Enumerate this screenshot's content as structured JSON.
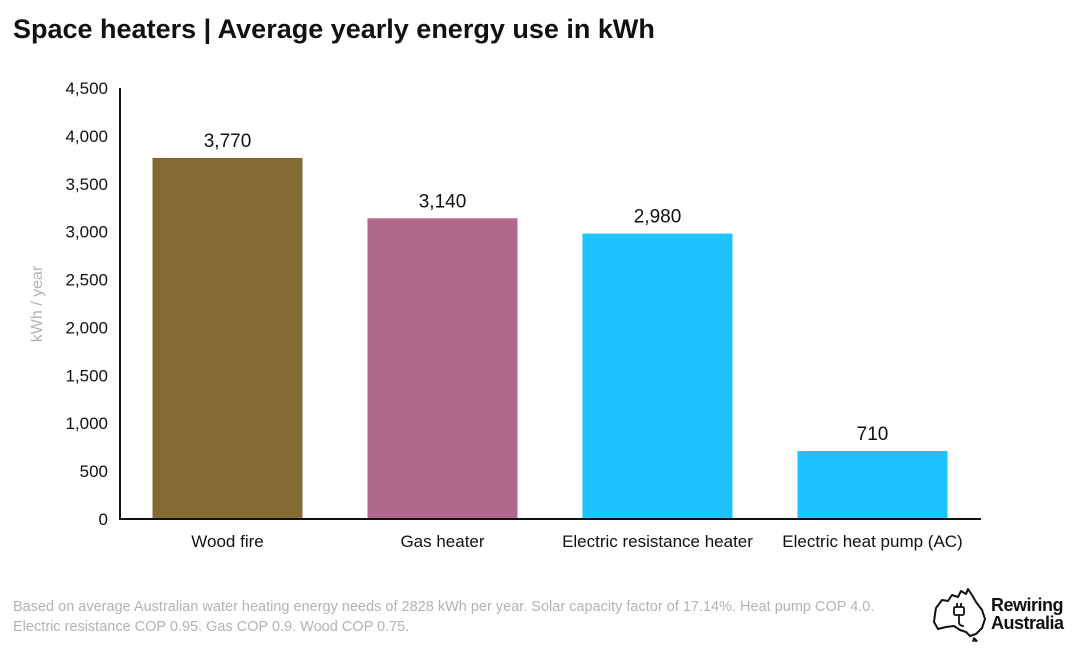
{
  "title": "Space heaters | Average yearly energy use in kWh",
  "chart_data": {
    "type": "bar",
    "title": "Space heaters | Average yearly energy use in kWh",
    "ylabel": "kWh / year",
    "xlabel": "",
    "categories": [
      "Wood fire",
      "Gas heater",
      "Electric resistance heater",
      "Electric heat pump (AC)"
    ],
    "values": [
      3770,
      3140,
      2980,
      710
    ],
    "data_labels": [
      "3,770",
      "3,140",
      "2,980",
      "710"
    ],
    "bar_colors": [
      "#836b32",
      "#b0688b",
      "#1ec3fd",
      "#1ec3fd"
    ],
    "ylim": [
      0,
      4500
    ],
    "yticks": [
      0,
      500,
      1000,
      1500,
      2000,
      2500,
      3000,
      3500,
      4000,
      4500
    ],
    "ytick_labels": [
      "0",
      "500",
      "1,000",
      "1,500",
      "2,000",
      "2,500",
      "3,000",
      "3,500",
      "4,000",
      "4,500"
    ],
    "grid": false,
    "legend": "none"
  },
  "footnote": "Based on average Australian water heating energy needs of 2828 kWh per year. Solar capacity factor of 17.14%. Heat pump COP 4.0. Electric resistance COP 0.95. Gas COP 0.9. Wood COP 0.75.",
  "logo": {
    "line1": "Rewiring",
    "line2": "Australia",
    "icon": "australia-map-plug-icon"
  }
}
